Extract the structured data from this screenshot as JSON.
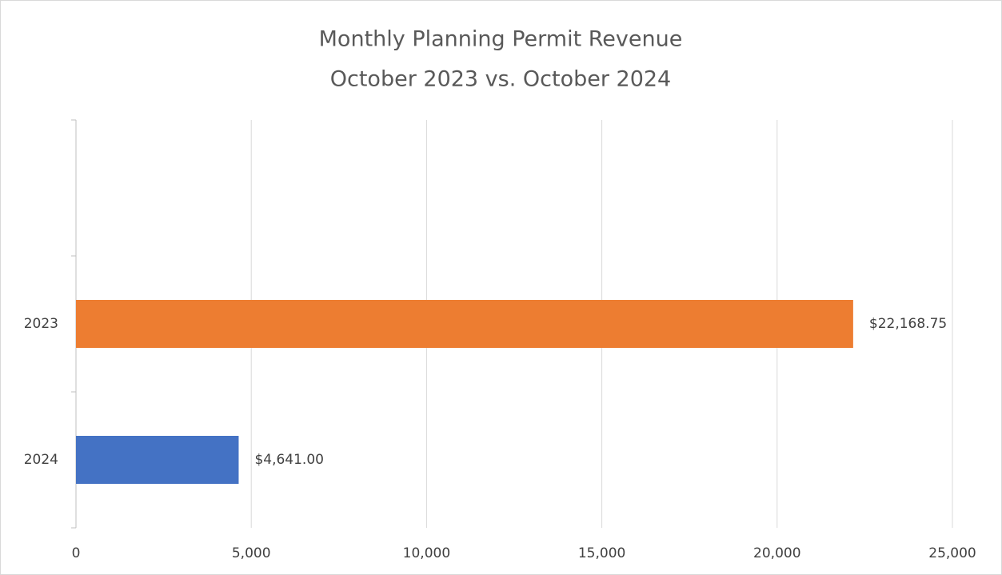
{
  "chart_data": {
    "type": "hbar",
    "title": "Monthly Planning Permit Revenue",
    "subtitle": "October 2023 vs. October 2024",
    "categories": [
      null,
      "2023",
      "2024"
    ],
    "values": [
      null,
      22168.75,
      4641
    ],
    "value_labels": [
      null,
      "$22,168.75",
      "$4,641.00"
    ],
    "colors": [
      null,
      "#ed7d31",
      "#4472c4"
    ],
    "xlim": [
      0,
      25000
    ],
    "xticks": [
      0,
      {
        "value": 5000,
        "label": "5,000"
      },
      {
        "value": 10000,
        "label": "10,000"
      },
      {
        "value": 15000,
        "label": "15,000"
      },
      {
        "value": 20000,
        "label": "20,000"
      },
      {
        "value": 25000,
        "label": "25,000"
      }
    ],
    "grid": true
  }
}
